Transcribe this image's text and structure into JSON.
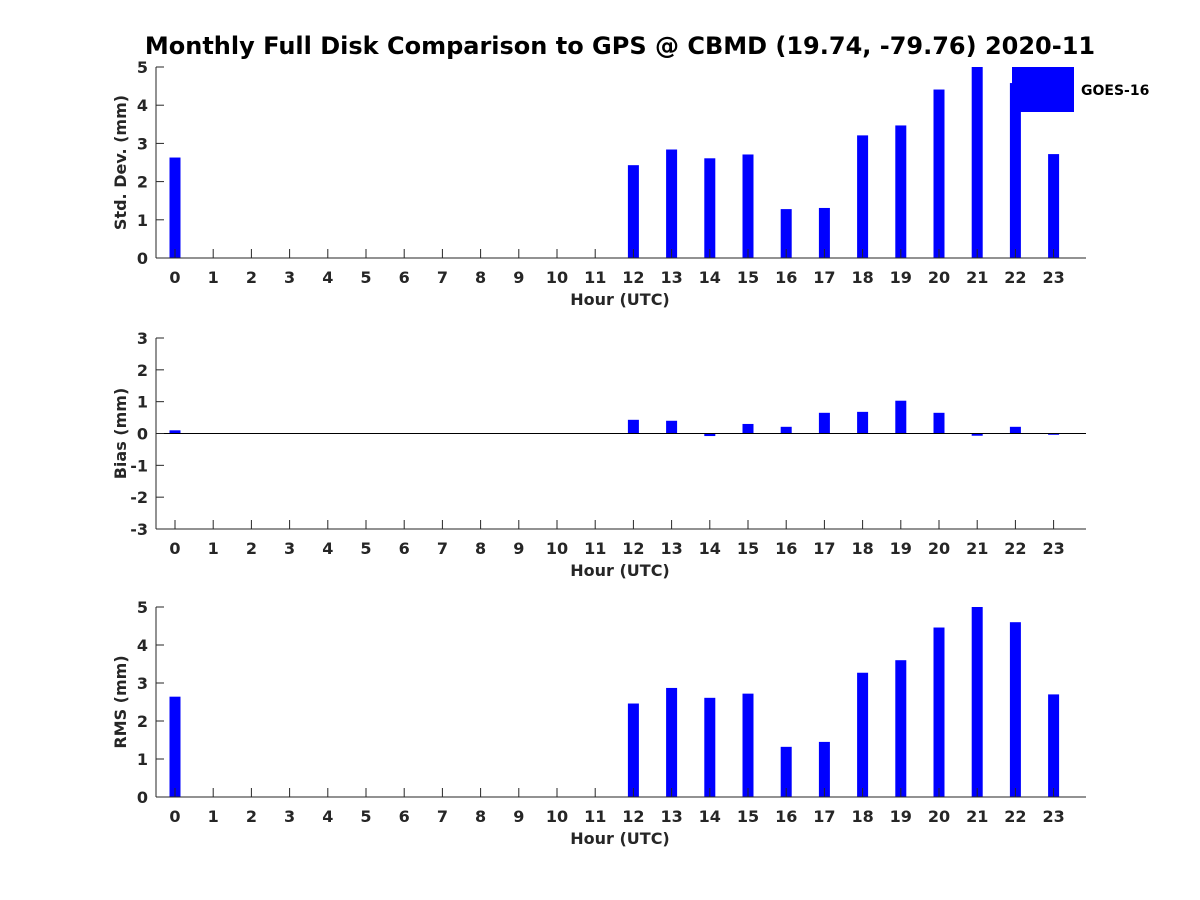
{
  "title": "Monthly Full Disk Comparison to GPS @ CBMD (19.74, -79.76) 2020-11",
  "legend": {
    "label": "GOES-16",
    "color": "#0000ff"
  },
  "chart_data": [
    {
      "type": "bar",
      "name": "std",
      "ylabel": "Std. Dev. (mm)",
      "xlabel": "Hour (UTC)",
      "categories": [
        "0",
        "1",
        "2",
        "3",
        "4",
        "5",
        "6",
        "7",
        "8",
        "9",
        "10",
        "11",
        "12",
        "13",
        "14",
        "15",
        "16",
        "17",
        "18",
        "19",
        "20",
        "21",
        "22",
        "23"
      ],
      "values": [
        2.63,
        0,
        0,
        0,
        0,
        0,
        0,
        0,
        0,
        0,
        0,
        0,
        2.43,
        2.84,
        2.61,
        2.71,
        1.28,
        1.31,
        3.21,
        3.47,
        4.41,
        5.0,
        4.58,
        2.72
      ],
      "ylim": [
        0,
        5
      ],
      "yticks": [
        "0",
        "1",
        "2",
        "3",
        "4",
        "5"
      ],
      "color": "#0000ff"
    },
    {
      "type": "bar",
      "name": "bias",
      "ylabel": "Bias (mm)",
      "xlabel": "Hour (UTC)",
      "categories": [
        "0",
        "1",
        "2",
        "3",
        "4",
        "5",
        "6",
        "7",
        "8",
        "9",
        "10",
        "11",
        "12",
        "13",
        "14",
        "15",
        "16",
        "17",
        "18",
        "19",
        "20",
        "21",
        "22",
        "23"
      ],
      "values": [
        0.1,
        0,
        0,
        0,
        0,
        0,
        0,
        0,
        0,
        0,
        0,
        0,
        0.43,
        0.4,
        -0.08,
        0.3,
        0.21,
        0.65,
        0.68,
        1.03,
        0.65,
        -0.07,
        0.21,
        -0.04
      ],
      "ylim": [
        -3,
        3
      ],
      "yticks": [
        "-3",
        "-2",
        "-1",
        "0",
        "1",
        "2",
        "3"
      ],
      "color": "#0000ff"
    },
    {
      "type": "bar",
      "name": "rms",
      "ylabel": "RMS (mm)",
      "xlabel": "Hour (UTC)",
      "categories": [
        "0",
        "1",
        "2",
        "3",
        "4",
        "5",
        "6",
        "7",
        "8",
        "9",
        "10",
        "11",
        "12",
        "13",
        "14",
        "15",
        "16",
        "17",
        "18",
        "19",
        "20",
        "21",
        "22",
        "23"
      ],
      "values": [
        2.64,
        0,
        0,
        0,
        0,
        0,
        0,
        0,
        0,
        0,
        0,
        0,
        2.46,
        2.87,
        2.61,
        2.72,
        1.32,
        1.45,
        3.27,
        3.6,
        4.46,
        5.0,
        4.6,
        2.7
      ],
      "ylim": [
        0,
        5
      ],
      "yticks": [
        "0",
        "1",
        "2",
        "3",
        "4",
        "5"
      ],
      "color": "#0000ff"
    }
  ]
}
